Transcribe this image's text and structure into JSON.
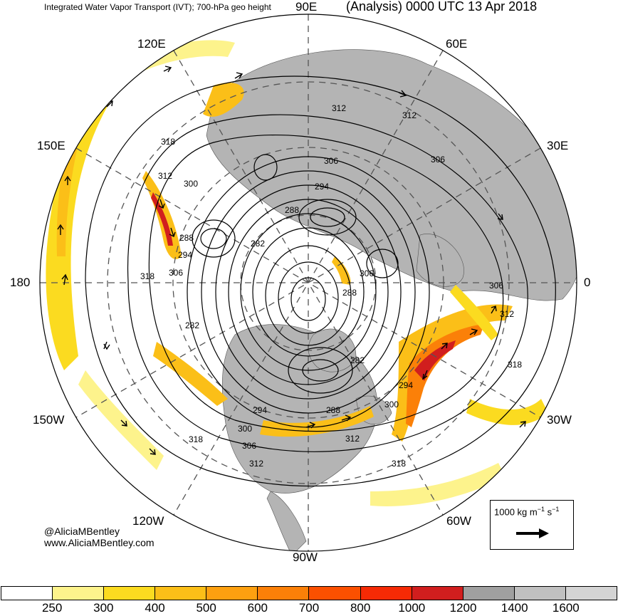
{
  "title": {
    "left": "Integrated Water Vapor Transport (IVT); 700-hPa geo height",
    "right": "(Analysis) 0000 UTC 13 Apr 2018"
  },
  "longitude_labels": {
    "e90": "90E",
    "e60": "60E",
    "e30": "30E",
    "zero": "0",
    "w30": "30W",
    "w60": "60W",
    "w90": "90W",
    "w120": "120W",
    "w150": "150W",
    "dateline": "180",
    "e150": "150E",
    "e120": "120E"
  },
  "contour_labels": [
    "312",
    "312",
    "318",
    "306",
    "312",
    "300",
    "294",
    "306",
    "288",
    "282",
    "288",
    "294",
    "306",
    "318",
    "306",
    "288",
    "306",
    "312",
    "282",
    "318",
    "282",
    "294",
    "300",
    "294",
    "300",
    "288",
    "312",
    "306",
    "312",
    "318",
    "318"
  ],
  "credits": {
    "handle": "@AliciaMBentley",
    "site": "www.AliciaMBentley.com"
  },
  "reference_vector": {
    "label_prefix": "1000 kg m",
    "label_exp1": "−1",
    "label_mid": " s",
    "label_exp2": "−1"
  },
  "colorbar": {
    "ticks": [
      "250",
      "300",
      "400",
      "500",
      "600",
      "700",
      "800",
      "1000",
      "1200",
      "1400",
      "1600"
    ],
    "colors": [
      "#ffffff",
      "#fdf38c",
      "#fbdb20",
      "#fbbf18",
      "#fda010",
      "#fb8008",
      "#fb5000",
      "#f52a05",
      "#d11e1e",
      "#a0a0a0",
      "#c0c0c0",
      "#d4d4d4"
    ]
  },
  "map_colors": {
    "land": "#b4b4b4",
    "ivt_light": "#fdf38c",
    "ivt_mid": "#fbdb20",
    "ivt_orange": "#fbbf18",
    "ivt_dark": "#fb8008",
    "ivt_core": "#d11e1e"
  }
}
